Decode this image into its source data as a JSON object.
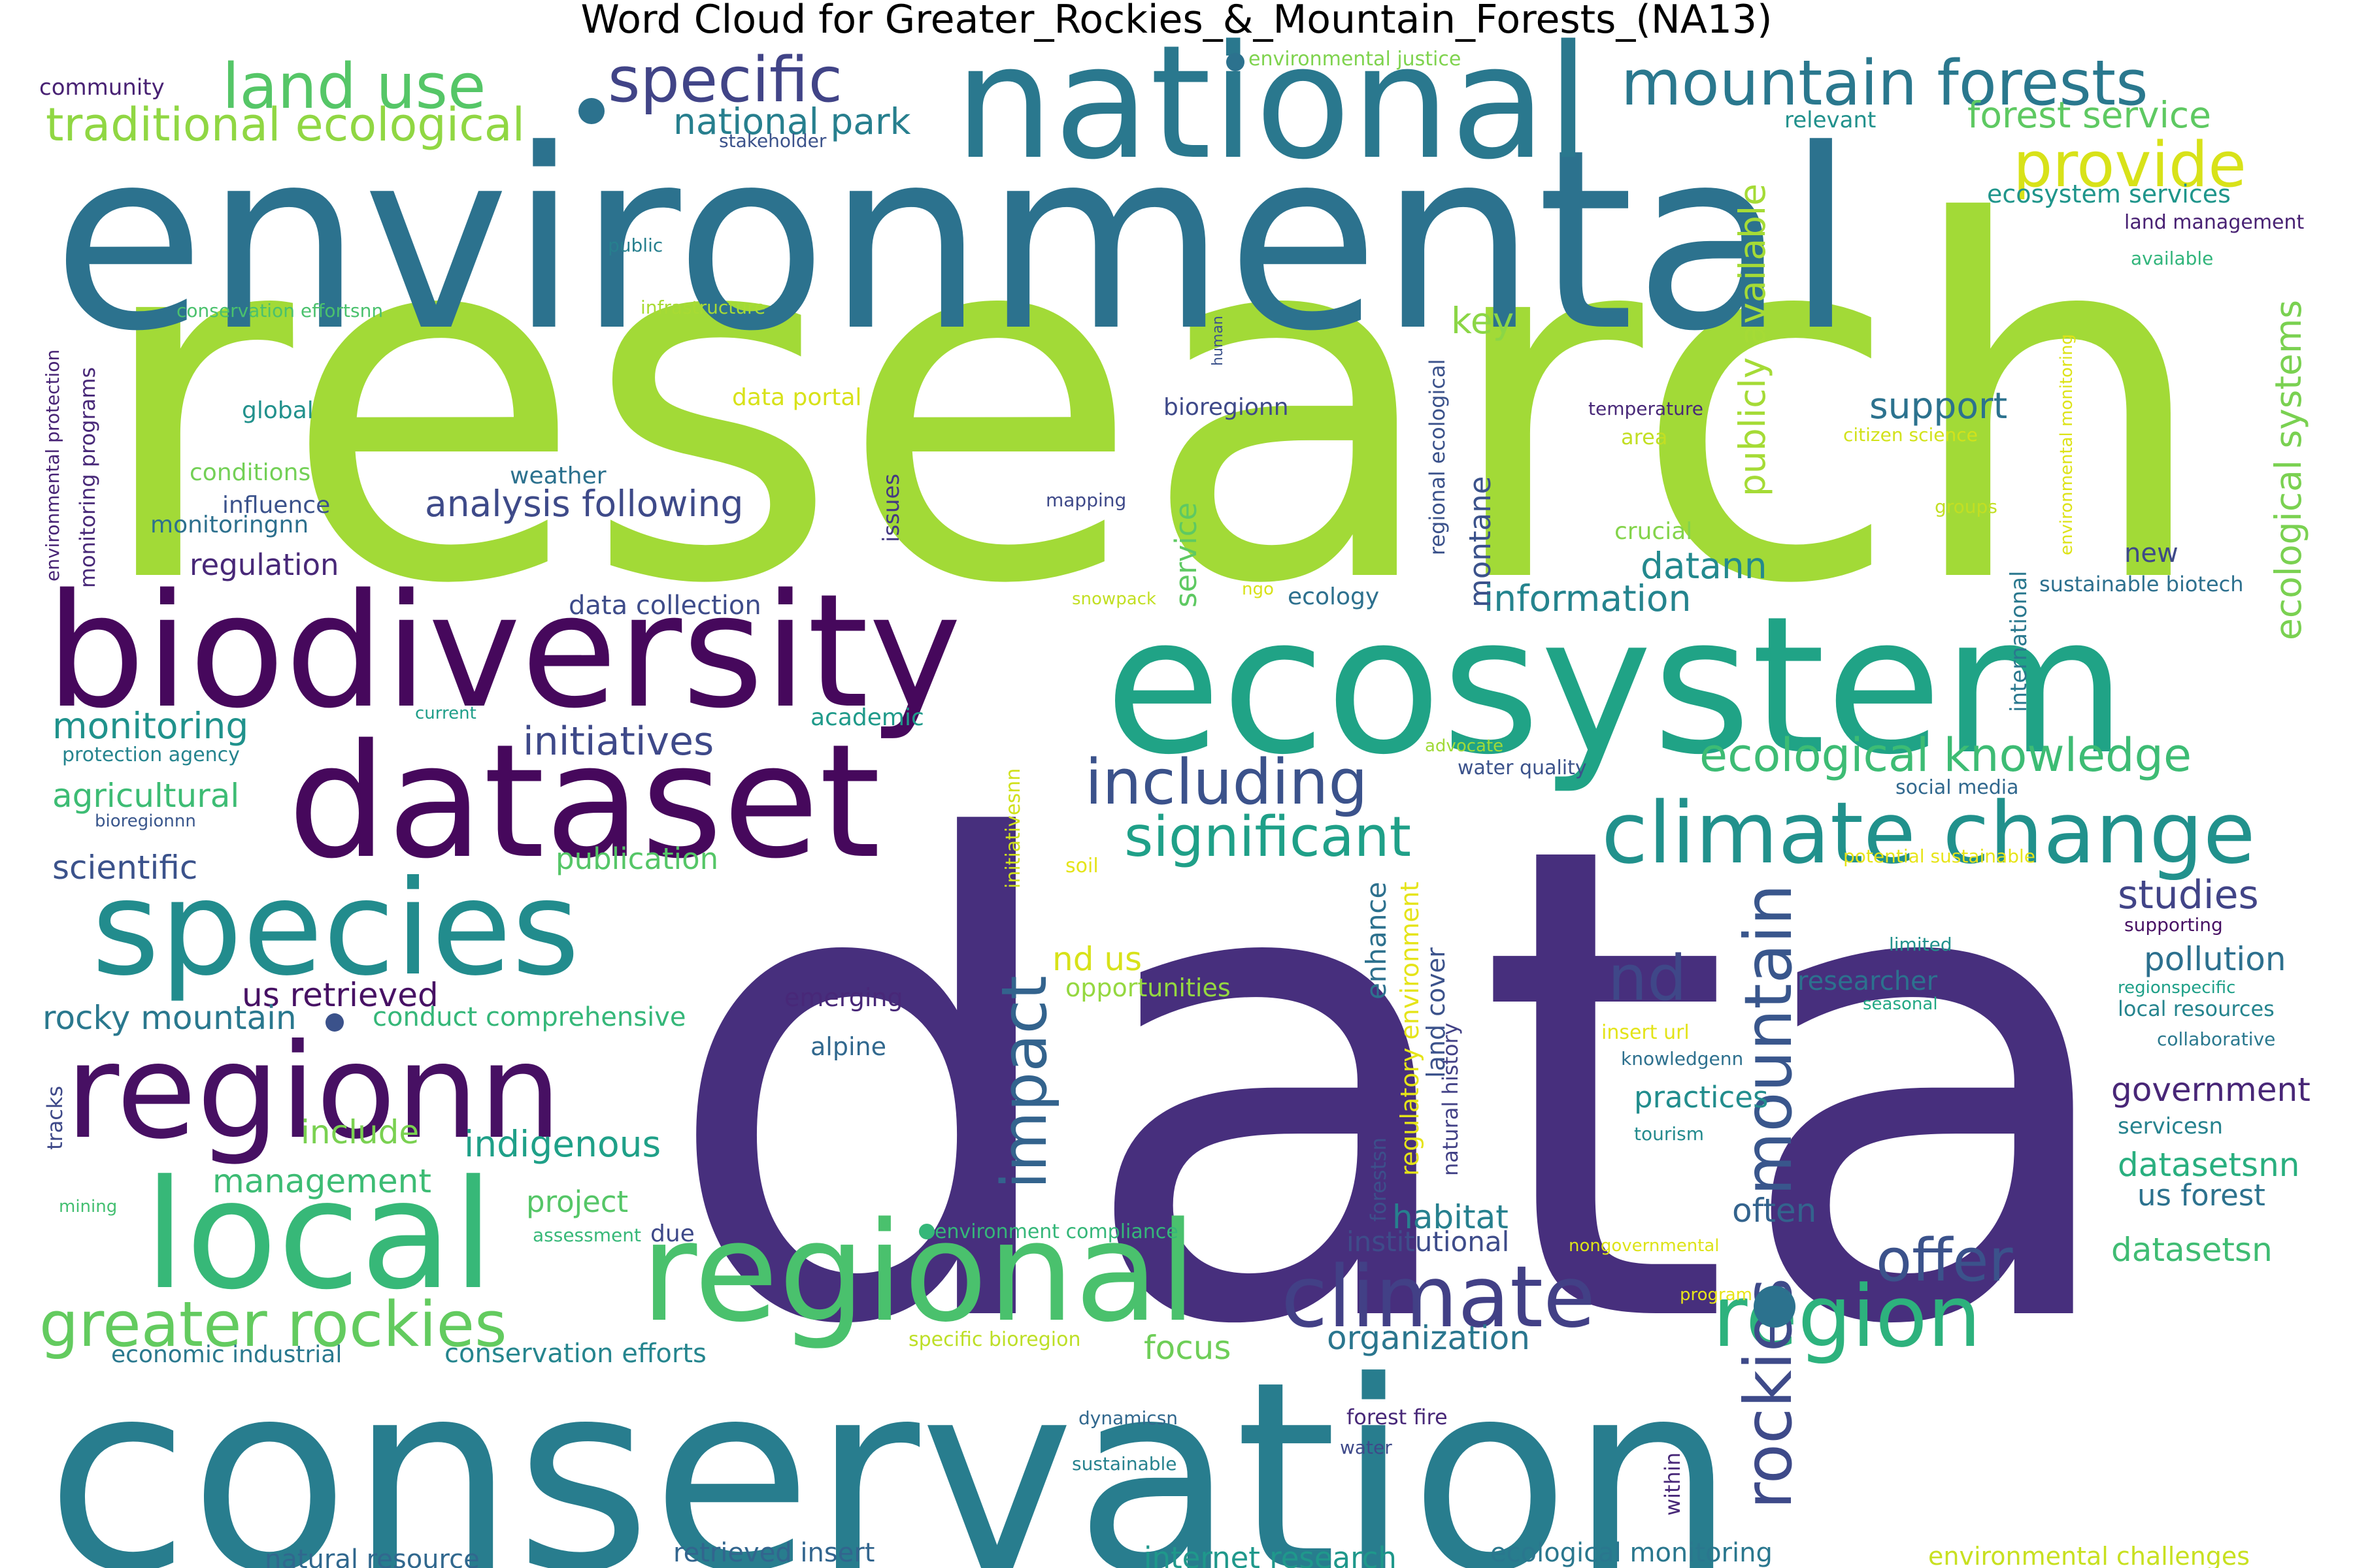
{
  "title": "Word Cloud for Greater_Rockies_&_Mountain_Forests_(NA13)",
  "colors": {
    "dark_purple": "#440154",
    "purple": "#482878",
    "indigo": "#3e4989",
    "slate_blue": "#31688e",
    "teal_blue": "#26828e",
    "teal": "#1f9e89",
    "sea_green": "#35b779",
    "green": "#6ece58",
    "lime": "#b5de2b",
    "yellow_lime": "#a6d936",
    "yellow": "#e3e418"
  },
  "words": [
    {
      "text": "data",
      "color": "#472f7d"
    },
    {
      "text": "research",
      "color": "#a2da37"
    },
    {
      "text": "environmental",
      "color": "#2c728e"
    },
    {
      "text": "conservation",
      "color": "#287d8e"
    },
    {
      "text": "ecosystem",
      "color": "#20a386"
    },
    {
      "text": "biodiversity",
      "color": "#46085c"
    },
    {
      "text": "dataset",
      "color": "#46085c"
    },
    {
      "text": "national",
      "color": "#2a788e"
    },
    {
      "text": "regional",
      "color": "#4ac16d"
    },
    {
      "text": "species",
      "color": "#228c8d"
    },
    {
      "text": "regionn",
      "color": "#471063"
    },
    {
      "text": "local",
      "color": "#37b878"
    },
    {
      "text": "climate change",
      "color": "#21918c"
    },
    {
      "text": "climate",
      "color": "#424086"
    },
    {
      "text": "region",
      "color": "#2db27d"
    },
    {
      "text": "greater rockies",
      "color": "#63cb5f"
    },
    {
      "text": "mountain forests",
      "color": "#2a788e"
    },
    {
      "text": "land use",
      "color": "#55c667"
    },
    {
      "text": "specific",
      "color": "#414487"
    },
    {
      "text": "provide",
      "color": "#d8e219"
    },
    {
      "text": "traditional ecological",
      "color": "#90d743"
    },
    {
      "text": "including",
      "color": "#3b528b"
    },
    {
      "text": "significant",
      "color": "#1fa088"
    },
    {
      "text": "ecological knowledge",
      "color": "#3dbc74"
    },
    {
      "text": "rockies",
      "color": "#3e4a89"
    },
    {
      "text": "mountain",
      "color": "#39568c"
    },
    {
      "text": "impact",
      "color": "#33638d"
    },
    {
      "text": "nd",
      "color": "#3f4788"
    },
    {
      "text": "offer",
      "color": "#3b528b"
    },
    {
      "text": "initiatives",
      "color": "#3e4989"
    },
    {
      "text": "national park",
      "color": "#277f8e"
    },
    {
      "text": "forest service",
      "color": "#5ec962"
    },
    {
      "text": "ecosystem services",
      "color": "#1f958b"
    },
    {
      "text": "land management",
      "color": "#482173"
    },
    {
      "text": "publicly available",
      "color": "#a5db36"
    },
    {
      "text": "ecological systems",
      "color": "#7ad151"
    },
    {
      "text": "support",
      "color": "#2c728e"
    },
    {
      "text": "analysis following",
      "color": "#3e4a89"
    },
    {
      "text": "information",
      "color": "#25848e"
    },
    {
      "text": "datann",
      "color": "#23898e"
    },
    {
      "text": "key",
      "color": "#8bd646"
    },
    {
      "text": "montane",
      "color": "#3b528b"
    },
    {
      "text": "service",
      "color": "#5ec962"
    },
    {
      "text": "studies",
      "color": "#414487"
    },
    {
      "text": "pollution",
      "color": "#2d708e"
    },
    {
      "text": "government",
      "color": "#482677"
    },
    {
      "text": "datasetsnn",
      "color": "#29af7f"
    },
    {
      "text": "us forest",
      "color": "#2c728e"
    },
    {
      "text": "datasetsn",
      "color": "#3fbc73"
    },
    {
      "text": "often",
      "color": "#33638d"
    },
    {
      "text": "habitat",
      "color": "#27808e"
    },
    {
      "text": "institutional",
      "color": "#3e4c8a"
    },
    {
      "text": "organization",
      "color": "#2a768e"
    },
    {
      "text": "focus",
      "color": "#6ece58"
    },
    {
      "text": "practices",
      "color": "#228d8d"
    },
    {
      "text": "researcher",
      "color": "#2c718e"
    },
    {
      "text": "enhance",
      "color": "#2d718e"
    },
    {
      "text": "land cover",
      "color": "#3b528b"
    },
    {
      "text": "regulatory environment",
      "color": "#e5e419"
    },
    {
      "text": "natural history",
      "color": "#424186"
    },
    {
      "text": "forestsn",
      "color": "#3c508b"
    },
    {
      "text": "monitoring",
      "color": "#20928c"
    },
    {
      "text": "agricultural",
      "color": "#3dbc74"
    },
    {
      "text": "scientific",
      "color": "#3b528b"
    },
    {
      "text": "publication",
      "color": "#55c667"
    },
    {
      "text": "us retrieved",
      "color": "#471164"
    },
    {
      "text": "rocky mountain",
      "color": "#2a788e"
    },
    {
      "text": "conduct comprehensive",
      "color": "#35b779"
    },
    {
      "text": "include",
      "color": "#7ad151"
    },
    {
      "text": "indigenous",
      "color": "#1fa088"
    },
    {
      "text": "management",
      "color": "#3dbc74"
    },
    {
      "text": "project",
      "color": "#55c667"
    },
    {
      "text": "due",
      "color": "#3e4989"
    },
    {
      "text": "economic industrial",
      "color": "#2a788e"
    },
    {
      "text": "conservation efforts",
      "color": "#25858e"
    },
    {
      "text": "natural resource",
      "color": "#31688e"
    },
    {
      "text": "retrieved insert",
      "color": "#32658e"
    },
    {
      "text": "internet research",
      "color": "#1f988b"
    },
    {
      "text": "ecological monitoring",
      "color": "#2a778e"
    },
    {
      "text": "environmental challenges",
      "color": "#c8e020"
    },
    {
      "text": "regulation",
      "color": "#482878"
    },
    {
      "text": "data collection",
      "color": "#3e4c8a"
    },
    {
      "text": "weather",
      "color": "#2c718e"
    },
    {
      "text": "influence",
      "color": "#3b528b"
    },
    {
      "text": "monitoringnn",
      "color": "#2d708e"
    },
    {
      "text": "conditions",
      "color": "#73d056"
    },
    {
      "text": "global",
      "color": "#21918c"
    },
    {
      "text": "data portal",
      "color": "#d8e219"
    },
    {
      "text": "bioregionn",
      "color": "#3e4989"
    },
    {
      "text": "academic",
      "color": "#1f9a8a"
    },
    {
      "text": "ecology",
      "color": "#2d708e"
    },
    {
      "text": "crucial",
      "color": "#84d44b"
    },
    {
      "text": "area",
      "color": "#c2df23"
    },
    {
      "text": "new",
      "color": "#3e4989"
    },
    {
      "text": "community",
      "color": "#482173"
    },
    {
      "text": "environmental justice",
      "color": "#7fd34e"
    },
    {
      "text": "stakeholder",
      "color": "#3b528b"
    },
    {
      "text": "relevant",
      "color": "#21918c"
    },
    {
      "text": "public",
      "color": "#277f8e"
    },
    {
      "text": "available",
      "color": "#31b57b"
    },
    {
      "text": "conservation effortsnn",
      "color": "#4ac16d"
    },
    {
      "text": "infrastructure",
      "color": "#a8db34"
    },
    {
      "text": "human",
      "color": "#3b528b"
    },
    {
      "text": "regional ecological",
      "color": "#3b528b"
    },
    {
      "text": "temperature",
      "color": "#482878"
    },
    {
      "text": "citizen science",
      "color": "#d2e21b"
    },
    {
      "text": "environmental monitoring",
      "color": "#dde318"
    },
    {
      "text": "groups",
      "color": "#c2df23"
    },
    {
      "text": "international",
      "color": "#2a788e"
    },
    {
      "text": "sustainable biotech",
      "color": "#2d708e"
    },
    {
      "text": "environmental protection",
      "color": "#482475"
    },
    {
      "text": "monitoring programs",
      "color": "#482878"
    },
    {
      "text": "issues",
      "color": "#443983"
    },
    {
      "text": "mapping",
      "color": "#3e4989"
    },
    {
      "text": "snowpack",
      "color": "#c2df23"
    },
    {
      "text": "ngo",
      "color": "#d8e219"
    },
    {
      "text": "current",
      "color": "#1f9e89"
    },
    {
      "text": "protection agency",
      "color": "#25848e"
    },
    {
      "text": "bioregionnn",
      "color": "#39568c"
    },
    {
      "text": "initiativesnn",
      "color": "#d0e11c"
    },
    {
      "text": "soil",
      "color": "#e5e419"
    },
    {
      "text": "advocate",
      "color": "#a0da39"
    },
    {
      "text": "water quality",
      "color": "#3b528b"
    },
    {
      "text": "social media",
      "color": "#31688e"
    },
    {
      "text": "potential sustainable",
      "color": "#e7e419"
    },
    {
      "text": "supporting",
      "color": "#471063"
    },
    {
      "text": "limited",
      "color": "#21918c"
    },
    {
      "text": "regionspecific",
      "color": "#1fa088"
    },
    {
      "text": "local resources",
      "color": "#25848e"
    },
    {
      "text": "collaborative",
      "color": "#2a788e"
    },
    {
      "text": "seasonal",
      "color": "#22a884"
    },
    {
      "text": "nd us",
      "color": "#d8e219"
    },
    {
      "text": "opportunities",
      "color": "#95d840"
    },
    {
      "text": "emerging",
      "color": "#482878"
    },
    {
      "text": "alpine",
      "color": "#31688e"
    },
    {
      "text": "insert url",
      "color": "#e3e418"
    },
    {
      "text": "knowledgenn",
      "color": "#2d708e"
    },
    {
      "text": "tourism",
      "color": "#238a8d"
    },
    {
      "text": "servicesn",
      "color": "#26828e"
    },
    {
      "text": "mining",
      "color": "#43bf71"
    },
    {
      "text": "assessment",
      "color": "#37b878"
    },
    {
      "text": "environment compliance",
      "color": "#35b779"
    },
    {
      "text": "nongovernmental",
      "color": "#dde318"
    },
    {
      "text": "program",
      "color": "#e7e419"
    },
    {
      "text": "specific bioregion",
      "color": "#bddf26"
    },
    {
      "text": "forest fire",
      "color": "#482878"
    },
    {
      "text": "dynamicsn",
      "color": "#31688e"
    },
    {
      "text": "water",
      "color": "#3e4989"
    },
    {
      "text": "sustainable",
      "color": "#26828e"
    },
    {
      "text": "within",
      "color": "#482878"
    },
    {
      "text": "tracks",
      "color": "#3e4989"
    }
  ]
}
